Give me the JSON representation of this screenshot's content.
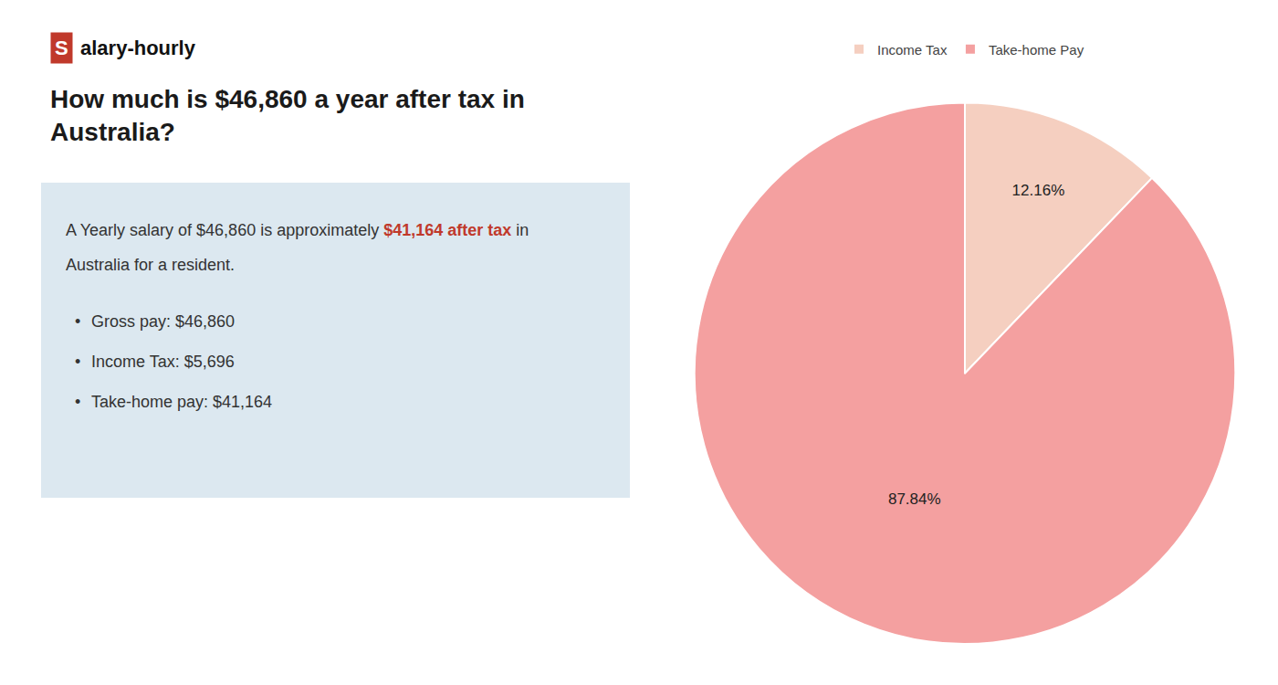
{
  "chart_data": {
    "type": "pie",
    "title": [
      "How much is $46,860 a year after tax in",
      "Australia?"
    ],
    "categories": [
      "Income Tax",
      "Take-home Pay"
    ],
    "values": [
      12.16,
      87.84
    ],
    "value_labels": [
      "12.16%",
      "87.84%"
    ],
    "colors": [
      "#f5cfc0",
      "#f4a0a0"
    ],
    "data_labels": true,
    "legend": "top",
    "annotations": {
      "logo": [
        {
          "text": "S",
          "color": "#ffffff",
          "background": "#c0392b",
          "bold": true
        },
        {
          "text": "alary-hourly",
          "color": "#111111",
          "bold": true
        }
      ],
      "box": {
        "background": "#dce8f0",
        "color": "#333333",
        "lines": [
          [
            {
              "text": "A Yearly salary of $46,860 is approximately "
            },
            {
              "text": "$41,164 after tax",
              "color": "#c0392b",
              "bold": true
            },
            {
              "text": " in"
            }
          ],
          [
            {
              "text": "Australia for a resident."
            }
          ]
        ],
        "bullet": "•",
        "items": [
          "Gross pay: $46,860",
          "Income Tax: $5,696",
          "Take-home pay: $41,164"
        ]
      }
    }
  }
}
